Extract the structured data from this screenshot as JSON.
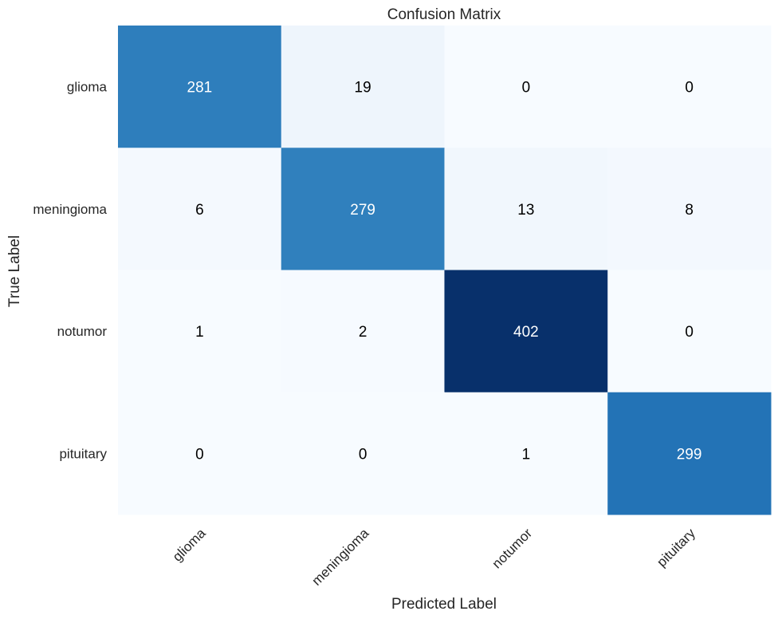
{
  "chart_data": {
    "type": "heatmap",
    "title": "Confusion Matrix",
    "xlabel": "Predicted Label",
    "ylabel": "True Label",
    "x_categories": [
      "glioma",
      "meningioma",
      "notumor",
      "pituitary"
    ],
    "y_categories": [
      "glioma",
      "meningioma",
      "notumor",
      "pituitary"
    ],
    "values": [
      [
        281,
        19,
        0,
        0
      ],
      [
        6,
        279,
        13,
        8
      ],
      [
        1,
        2,
        402,
        0
      ],
      [
        0,
        0,
        1,
        299
      ]
    ],
    "colormap": "Blues",
    "vmin": 0,
    "vmax": 402,
    "grid": false,
    "colorbar": false,
    "cell_text_dark": "#000000",
    "cell_text_light": "#ffffff"
  }
}
